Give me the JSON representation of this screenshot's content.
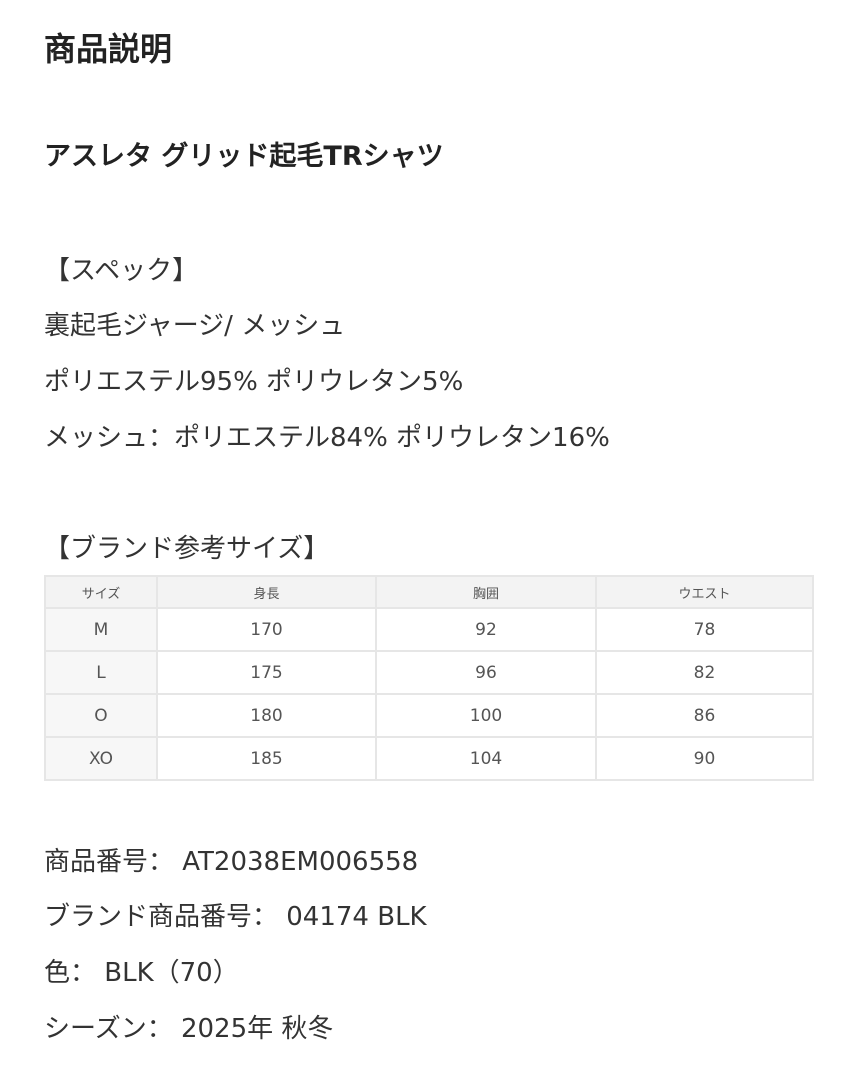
{
  "title": "商品説明",
  "product_name": "アスレタ グリッド起毛TRシャツ",
  "spec": {
    "heading": "【スペック】",
    "lines": [
      "裏起毛ジャージ/ メッシュ",
      "ポリエステル95% ポリウレタン5%",
      "メッシュ：ポリエステル84% ポリウレタン16%"
    ]
  },
  "size_table": {
    "heading": "【ブランド参考サイズ】",
    "columns": [
      "サイズ",
      "身長",
      "胸囲",
      "ウエスト"
    ],
    "rows": [
      [
        "M",
        "170",
        "92",
        "78"
      ],
      [
        "L",
        "175",
        "96",
        "82"
      ],
      [
        "O",
        "180",
        "100",
        "86"
      ],
      [
        "XO",
        "185",
        "104",
        "90"
      ]
    ]
  },
  "details": [
    "商品番号： AT2038EM006558",
    "ブランド商品番号： 04174 BLK",
    "色： BLK（70）",
    "シーズン： 2025年 秋冬"
  ]
}
